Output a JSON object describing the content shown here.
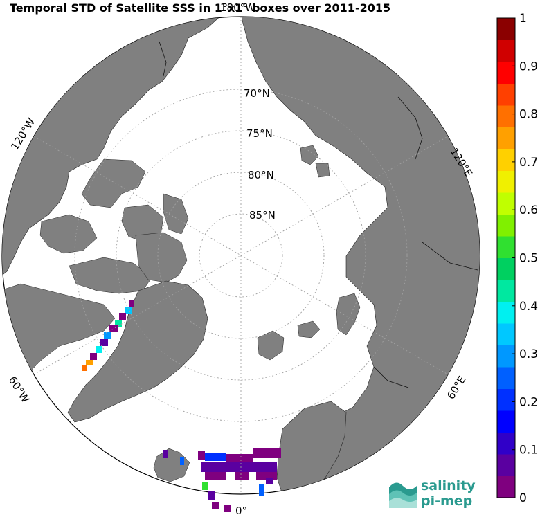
{
  "title": "Temporal STD of Satellite SSS in 1°x1° boxes over 2011-2015",
  "map": {
    "projection": "north-polar-stereographic",
    "land_color": "#808080",
    "ocean_color": "#ffffff",
    "grid_color": "#a0a0a0",
    "latitude_labels": [
      "70°N",
      "75°N",
      "80°N",
      "85°N"
    ],
    "longitude_labels": {
      "top": "180°W",
      "bottom": "0°",
      "left_upper": "120°W",
      "left_lower": "60°W",
      "right_upper": "120°E",
      "right_lower": "60°E"
    }
  },
  "colorbar": {
    "min": 0,
    "max": 1,
    "ticks": [
      "0",
      "0.1",
      "0.2",
      "0.3",
      "0.4",
      "0.5",
      "0.6",
      "0.7",
      "0.8",
      "0.9",
      "1"
    ],
    "colors": [
      "#7f007f",
      "#5a00a0",
      "#3000c8",
      "#0000ff",
      "#0030ff",
      "#0060ff",
      "#0098ff",
      "#00c8ff",
      "#00f0f0",
      "#00e8a0",
      "#00d060",
      "#30e030",
      "#80f000",
      "#c0ff00",
      "#f0f000",
      "#ffd000",
      "#ffa000",
      "#ff7000",
      "#ff4000",
      "#ff0000",
      "#d00000",
      "#8b0000"
    ]
  },
  "logo": {
    "line1": "salinity",
    "line2": "pi-mep"
  }
}
